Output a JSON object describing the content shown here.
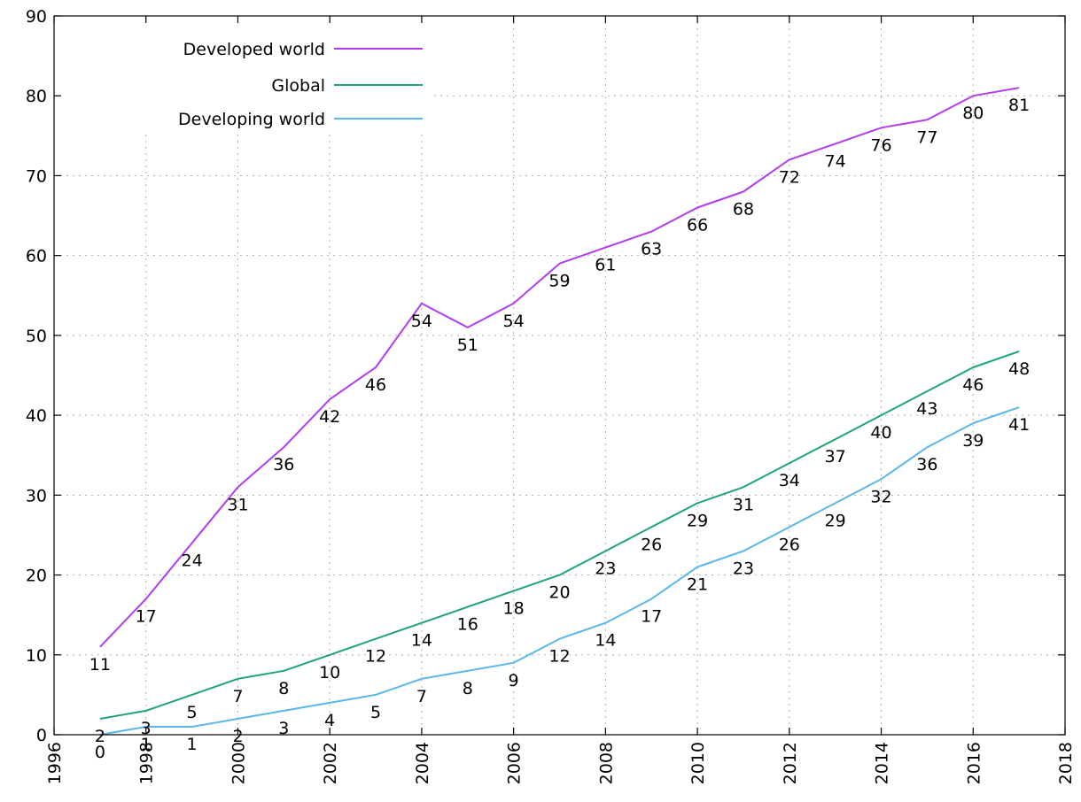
{
  "chart_data": {
    "type": "line",
    "title": "",
    "xlabel": "",
    "ylabel": "",
    "xlim": [
      1996,
      2018
    ],
    "ylim": [
      0,
      90
    ],
    "x_ticks": [
      1996,
      1998,
      2000,
      2002,
      2004,
      2006,
      2008,
      2010,
      2012,
      2014,
      2016,
      2018
    ],
    "y_ticks": [
      0,
      10,
      20,
      30,
      40,
      50,
      60,
      70,
      80,
      90
    ],
    "grid": true,
    "legend_position": "top-left",
    "x": [
      1997,
      1998,
      1999,
      2000,
      2001,
      2002,
      2003,
      2004,
      2005,
      2006,
      2007,
      2008,
      2009,
      2010,
      2011,
      2012,
      2013,
      2014,
      2015,
      2016,
      2017
    ],
    "series": [
      {
        "name": "Developed world",
        "color": "#b13cf0",
        "values": [
          11,
          17,
          24,
          31,
          36,
          42,
          46,
          54,
          51,
          54,
          59,
          61,
          63,
          66,
          68,
          72,
          74,
          76,
          77,
          80,
          81
        ],
        "labels": [
          "11",
          "17",
          "24",
          "31",
          "36",
          "42",
          "46",
          "54",
          "51",
          "54",
          "59",
          "61",
          "63",
          "66",
          "68",
          "72",
          "74",
          "76",
          "77",
          "80",
          "81"
        ]
      },
      {
        "name": "Global",
        "color": "#1ea37a",
        "values": [
          2,
          3,
          5,
          7,
          8,
          10,
          12,
          14,
          16,
          18,
          20,
          23,
          26,
          29,
          31,
          34,
          37,
          40,
          43,
          46,
          48
        ],
        "labels": [
          "2",
          "3",
          "5",
          "7",
          "8",
          "10",
          "12",
          "14",
          "16",
          "18",
          "20",
          "23",
          "26",
          "29",
          "31",
          "34",
          "37",
          "40",
          "43",
          "46",
          "48"
        ]
      },
      {
        "name": "Developing world",
        "color": "#5ab7ea",
        "values": [
          0,
          1,
          1,
          2,
          3,
          4,
          5,
          7,
          8,
          9,
          12,
          14,
          17,
          21,
          23,
          26,
          29,
          32,
          36,
          39,
          41
        ],
        "labels": [
          "0",
          "1",
          "1",
          "2",
          "3",
          "4",
          "5",
          "7",
          "8",
          "9",
          "12",
          "14",
          "17",
          "21",
          "23",
          "26",
          "29",
          "32",
          "36",
          "39",
          "41"
        ]
      }
    ]
  }
}
